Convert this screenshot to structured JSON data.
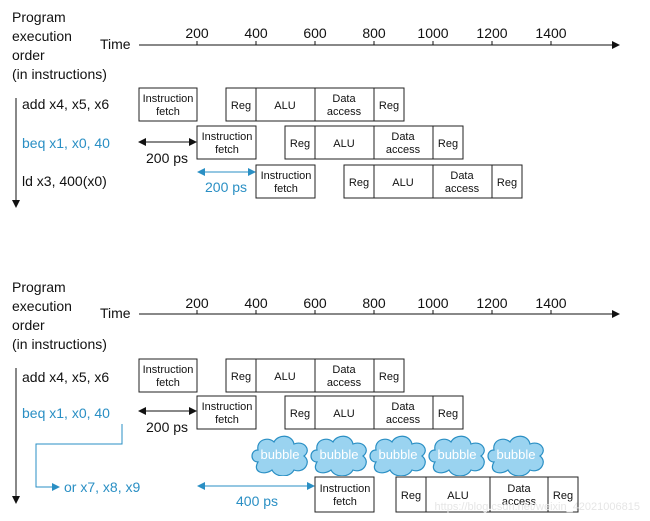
{
  "diagram_top": {
    "order_label": [
      "Program",
      "execution",
      "order",
      "(in instructions)"
    ],
    "time_label": "Time",
    "time_ticks": [
      "200",
      "400",
      "600",
      "800",
      "1000",
      "1200",
      "1400"
    ],
    "instructions": [
      "add x4, x5, x6",
      "beq x1, x0, 40",
      "ld x3, 400(x0)"
    ],
    "stage_labels": {
      "fetch_1": "Instruction",
      "fetch_2": "fetch",
      "reg": "Reg",
      "alu": "ALU",
      "data_1": "Data",
      "data_2": "access"
    },
    "gap_label_black": "200 ps",
    "gap_label_blue": "200 ps"
  },
  "diagram_bottom": {
    "order_label": [
      "Program",
      "execution",
      "order",
      "(in instructions)"
    ],
    "time_label": "Time",
    "time_ticks": [
      "200",
      "400",
      "600",
      "800",
      "1000",
      "1200",
      "1400"
    ],
    "instructions": [
      "add x4, x5, x6",
      "beq x1, x0, 40",
      "or x7, x8, x9"
    ],
    "stage_labels": {
      "fetch_1": "Instruction",
      "fetch_2": "fetch",
      "reg": "Reg",
      "alu": "ALU",
      "data_1": "Data",
      "data_2": "access"
    },
    "gap_label_black": "200 ps",
    "gap_label_blue": "400 ps",
    "bubble_label": "bubble"
  },
  "watermark": "https://blog.csdn.net/weixin_42021006815",
  "colors": {
    "accent_blue": "#2a8fc4",
    "bubble_fill": "#9ad3f0",
    "bubble_stroke": "#2a8fc4",
    "text": "#111111"
  }
}
